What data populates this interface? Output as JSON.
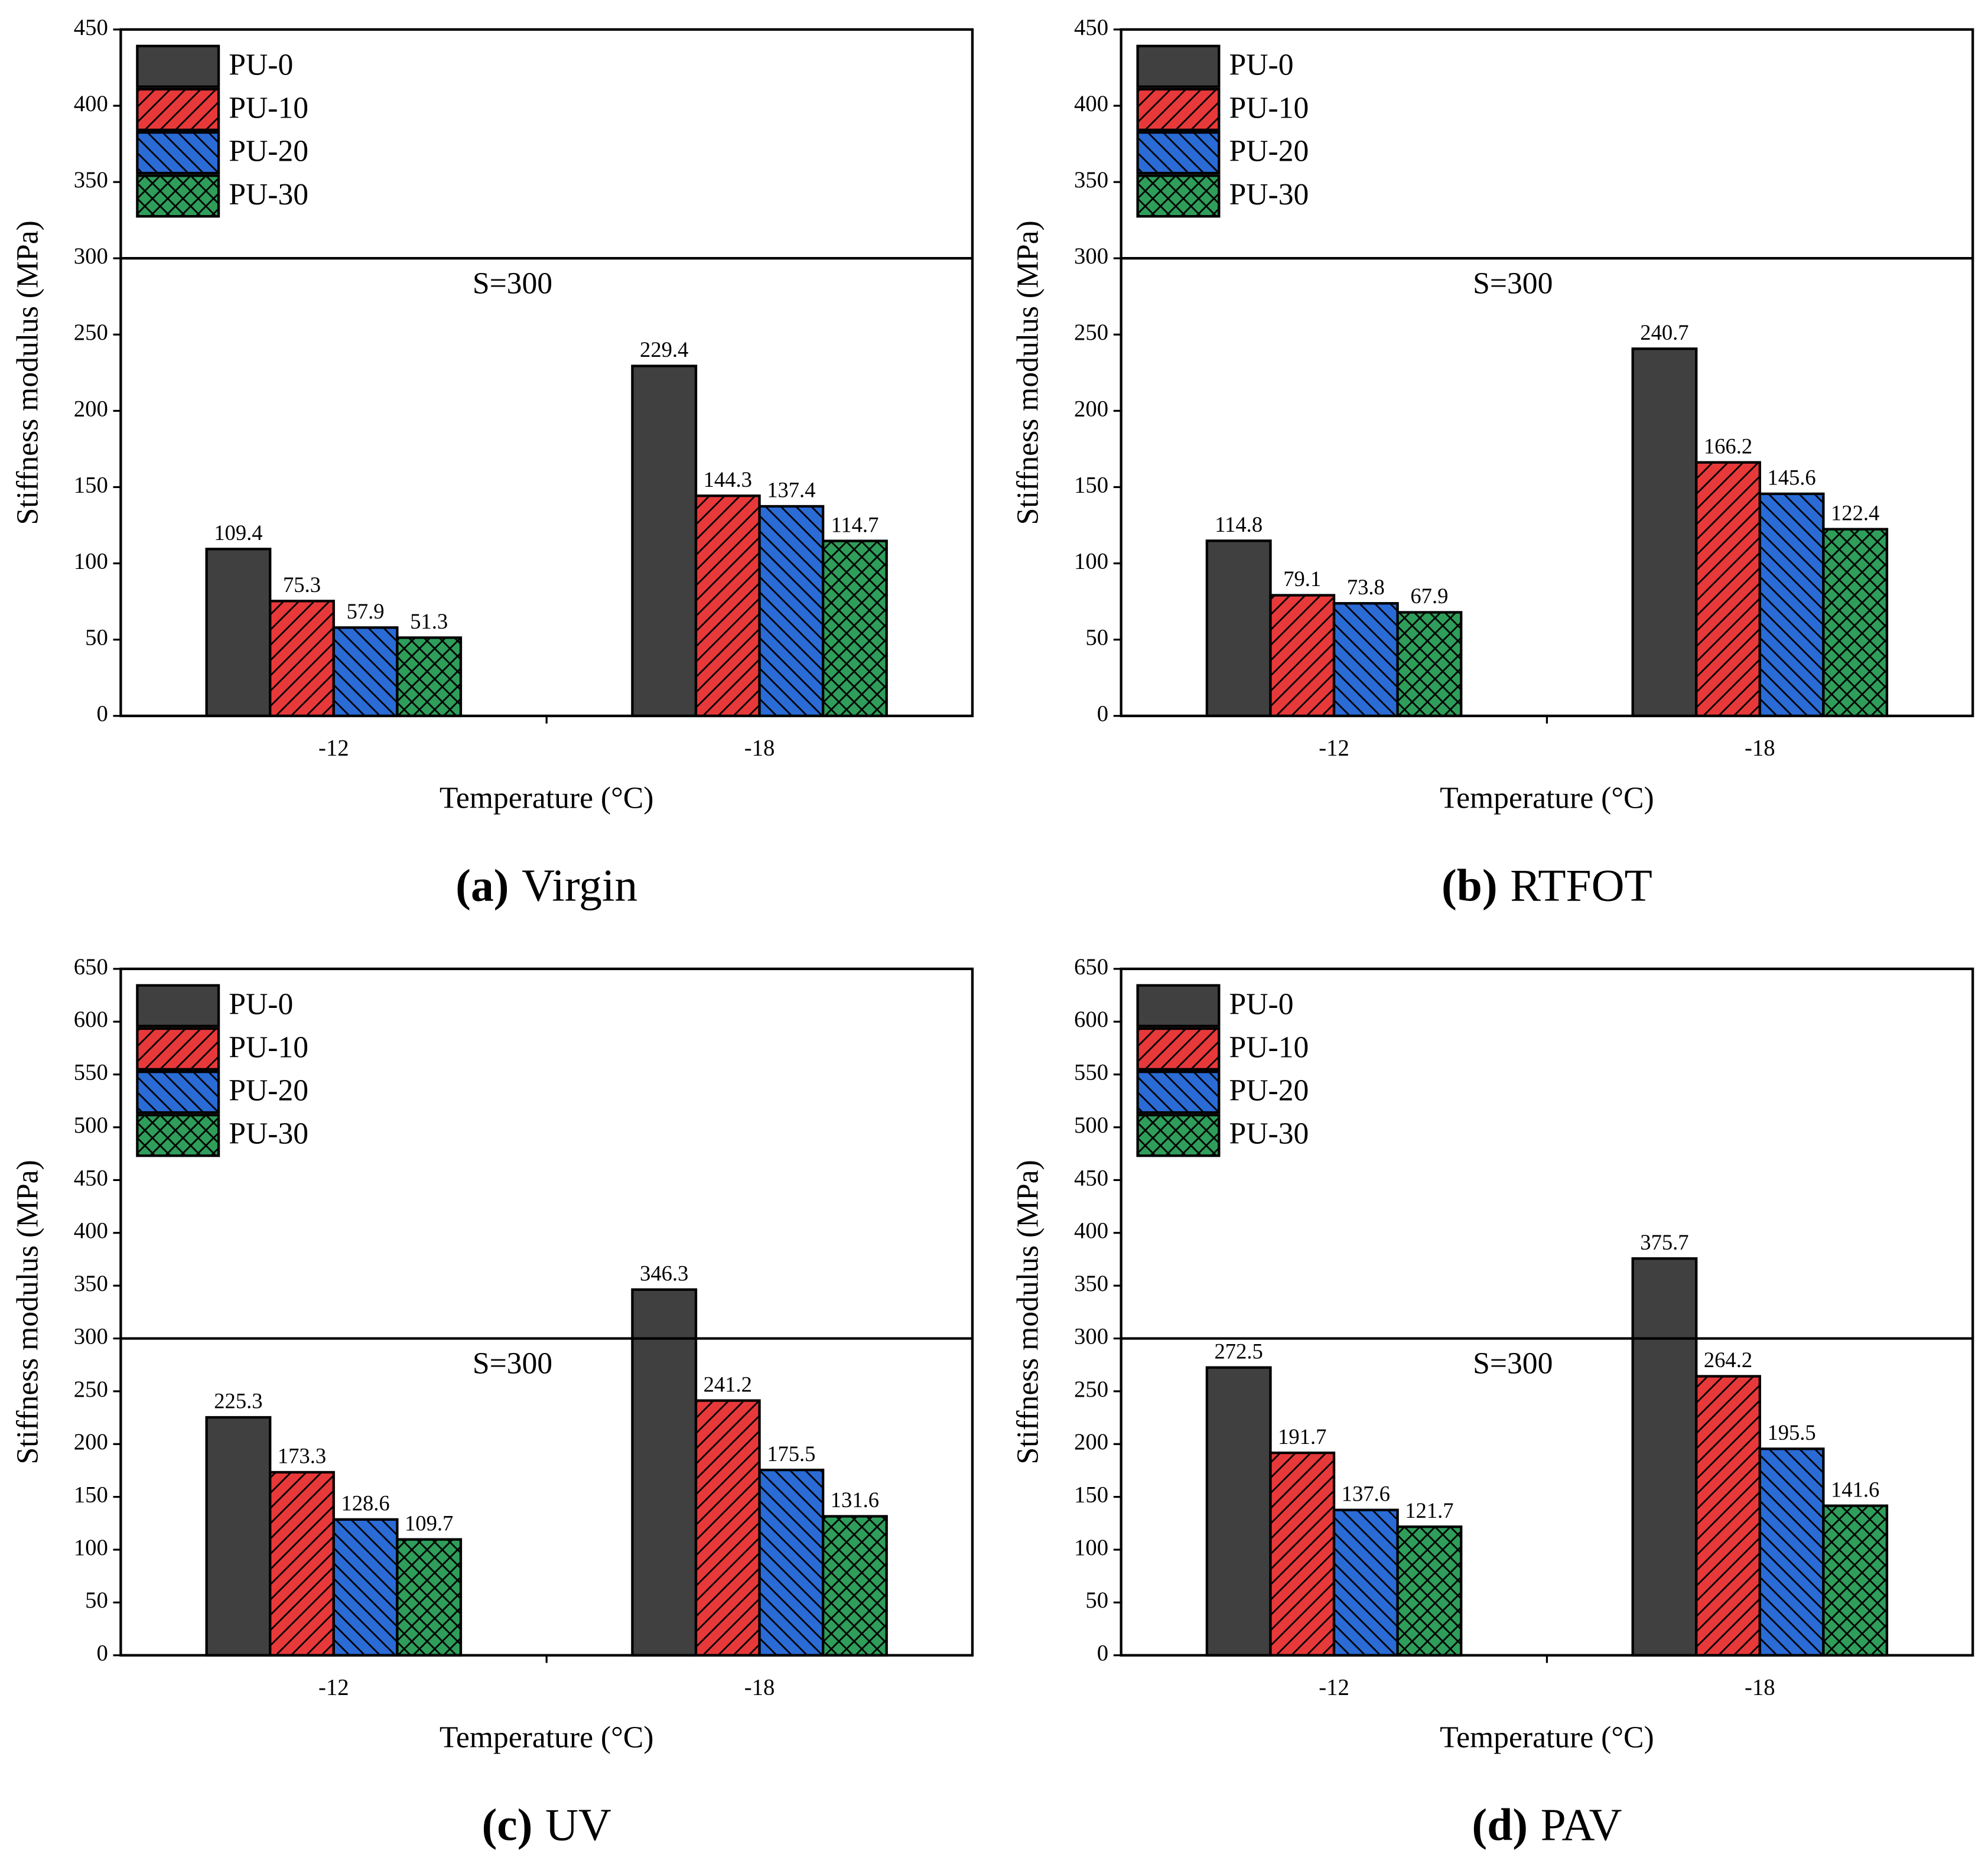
{
  "chart_data": [
    {
      "type": "bar",
      "panel_label": "(a)",
      "caption": "Virgin",
      "x_label": "Temperature (°C)",
      "y_label": "Stiffness modulus (MPa)",
      "categories": [
        "-12",
        "-18"
      ],
      "ylim": [
        0,
        450
      ],
      "yticks": [
        0,
        50,
        100,
        150,
        200,
        250,
        300,
        350,
        400,
        450
      ],
      "reference_line": {
        "value": 300,
        "label": "S=300"
      },
      "legend": "upper left",
      "series": [
        {
          "name": "PU-0",
          "color": "#404040",
          "hatch": "none",
          "values": [
            109.4,
            229.4
          ]
        },
        {
          "name": "PU-10",
          "color": "#e8393a",
          "hatch": "/",
          "values": [
            75.3,
            144.3
          ]
        },
        {
          "name": "PU-20",
          "color": "#2a6bd6",
          "hatch": "\\",
          "values": [
            57.9,
            137.4
          ]
        },
        {
          "name": "PU-30",
          "color": "#2e9e5a",
          "hatch": "x",
          "values": [
            51.3,
            114.7
          ]
        }
      ]
    },
    {
      "type": "bar",
      "panel_label": "(b)",
      "caption": "RTFOT",
      "x_label": "Temperature (°C)",
      "y_label": "Stiffness modulus (MPa)",
      "categories": [
        "-12",
        "-18"
      ],
      "ylim": [
        0,
        450
      ],
      "yticks": [
        0,
        50,
        100,
        150,
        200,
        250,
        300,
        350,
        400,
        450
      ],
      "reference_line": {
        "value": 300,
        "label": "S=300"
      },
      "legend": "upper left",
      "series": [
        {
          "name": "PU-0",
          "color": "#404040",
          "hatch": "none",
          "values": [
            114.8,
            240.7
          ]
        },
        {
          "name": "PU-10",
          "color": "#e8393a",
          "hatch": "/",
          "values": [
            79.1,
            166.2
          ]
        },
        {
          "name": "PU-20",
          "color": "#2a6bd6",
          "hatch": "\\",
          "values": [
            73.8,
            145.6
          ]
        },
        {
          "name": "PU-30",
          "color": "#2e9e5a",
          "hatch": "x",
          "values": [
            67.9,
            122.4
          ]
        }
      ]
    },
    {
      "type": "bar",
      "panel_label": "(c)",
      "caption": "UV",
      "x_label": "Temperature (°C)",
      "y_label": "Stiffness modulus (MPa)",
      "categories": [
        "-12",
        "-18"
      ],
      "ylim": [
        0,
        650
      ],
      "yticks": [
        0,
        50,
        100,
        150,
        200,
        250,
        300,
        350,
        400,
        450,
        500,
        550,
        600,
        650
      ],
      "reference_line": {
        "value": 300,
        "label": "S=300"
      },
      "legend": "upper left",
      "series": [
        {
          "name": "PU-0",
          "color": "#404040",
          "hatch": "none",
          "values": [
            225.3,
            346.3
          ]
        },
        {
          "name": "PU-10",
          "color": "#e8393a",
          "hatch": "/",
          "values": [
            173.3,
            241.2
          ]
        },
        {
          "name": "PU-20",
          "color": "#2a6bd6",
          "hatch": "\\",
          "values": [
            128.6,
            175.5
          ]
        },
        {
          "name": "PU-30",
          "color": "#2e9e5a",
          "hatch": "x",
          "values": [
            109.7,
            131.6
          ]
        }
      ]
    },
    {
      "type": "bar",
      "panel_label": "(d)",
      "caption": "PAV",
      "x_label": "Temperature (°C)",
      "y_label": "Stiffness modulus (MPa)",
      "categories": [
        "-12",
        "-18"
      ],
      "ylim": [
        0,
        650
      ],
      "yticks": [
        0,
        50,
        100,
        150,
        200,
        250,
        300,
        350,
        400,
        450,
        500,
        550,
        600,
        650
      ],
      "reference_line": {
        "value": 300,
        "label": "S=300"
      },
      "legend": "upper left",
      "series": [
        {
          "name": "PU-0",
          "color": "#404040",
          "hatch": "none",
          "values": [
            272.5,
            375.7
          ]
        },
        {
          "name": "PU-10",
          "color": "#e8393a",
          "hatch": "/",
          "values": [
            191.7,
            264.2
          ]
        },
        {
          "name": "PU-20",
          "color": "#2a6bd6",
          "hatch": "\\",
          "values": [
            137.6,
            195.5
          ]
        },
        {
          "name": "PU-30",
          "color": "#2e9e5a",
          "hatch": "x",
          "values": [
            121.7,
            141.6
          ]
        }
      ]
    }
  ]
}
